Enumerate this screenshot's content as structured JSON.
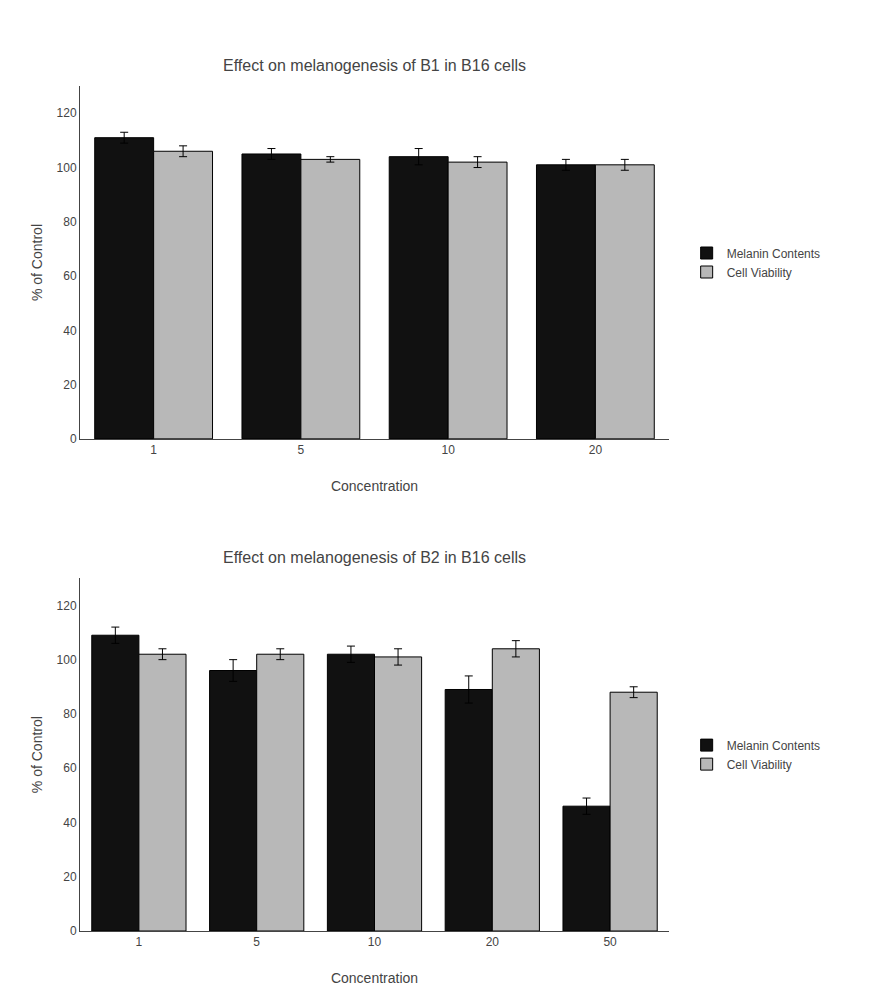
{
  "chart_data": [
    {
      "type": "bar",
      "title": "Effect on melanogenesis of B1 in B16 cells",
      "xlabel": "Concentration",
      "ylabel": "% of Control",
      "categories": [
        "1",
        "5",
        "10",
        "20"
      ],
      "series": [
        {
          "name": "Melanin Contents",
          "color": "#111111",
          "values": [
            111,
            105,
            104,
            101
          ],
          "errors": [
            2,
            2,
            3,
            2
          ]
        },
        {
          "name": "Cell Viability",
          "color": "#b8b8b8",
          "values": [
            106,
            103,
            102,
            101
          ],
          "errors": [
            2,
            1,
            2,
            2
          ]
        }
      ],
      "ylim": [
        0,
        130
      ],
      "yticks": [
        0,
        20,
        40,
        60,
        80,
        100,
        120
      ],
      "grid": false,
      "legend": "right"
    },
    {
      "type": "bar",
      "title": "Effect on melanogenesis of B2 in B16 cells",
      "xlabel": "Concentration",
      "ylabel": "% of Control",
      "categories": [
        "1",
        "5",
        "10",
        "20",
        "50"
      ],
      "series": [
        {
          "name": "Melanin Contents",
          "color": "#111111",
          "values": [
            109,
            96,
            102,
            89,
            46
          ],
          "errors": [
            3,
            4,
            3,
            5,
            3
          ]
        },
        {
          "name": "Cell Viability",
          "color": "#b8b8b8",
          "values": [
            102,
            102,
            101,
            104,
            88
          ],
          "errors": [
            2,
            2,
            3,
            3,
            2
          ]
        }
      ],
      "ylim": [
        0,
        130
      ],
      "yticks": [
        0,
        20,
        40,
        60,
        80,
        100,
        120
      ],
      "grid": false,
      "legend": "right"
    }
  ]
}
